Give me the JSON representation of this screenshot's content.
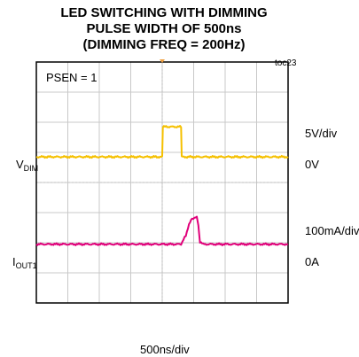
{
  "chart_data": {
    "type": "line",
    "title_lines": [
      "LED SWITCHING WITH DIMMING",
      "PULSE WIDTH OF 500ns",
      "(DIMMING FREQ = 200Hz)"
    ],
    "corner_label": "toc23",
    "annotation": "PSEN = 1",
    "x_scale_label": "500ns/div",
    "grid": true,
    "divisions": {
      "x": 8,
      "y": 8
    },
    "channels": [
      {
        "name_main": "V",
        "name_sub": "DIM",
        "scale_label": "5V/div",
        "zero_label": "0V",
        "color": "#f5c000",
        "zero_div": 3.15,
        "points": [
          [
            0,
            0
          ],
          [
            4.0,
            0
          ],
          [
            4.02,
            1.0
          ],
          [
            4.6,
            1.0
          ],
          [
            4.62,
            0
          ],
          [
            8,
            0
          ]
        ]
      },
      {
        "name_main": "I",
        "name_sub": "OUT1",
        "scale_label": "100mA/div",
        "zero_label": "0A",
        "color": "#e0007a",
        "zero_div": 6.05,
        "points": [
          [
            0,
            0
          ],
          [
            4.6,
            0
          ],
          [
            4.75,
            0.3
          ],
          [
            4.85,
            0.65
          ],
          [
            4.95,
            0.85
          ],
          [
            5.1,
            0.9
          ],
          [
            5.15,
            0.6
          ],
          [
            5.2,
            0.08
          ],
          [
            5.3,
            0
          ],
          [
            8,
            0
          ]
        ]
      }
    ]
  }
}
